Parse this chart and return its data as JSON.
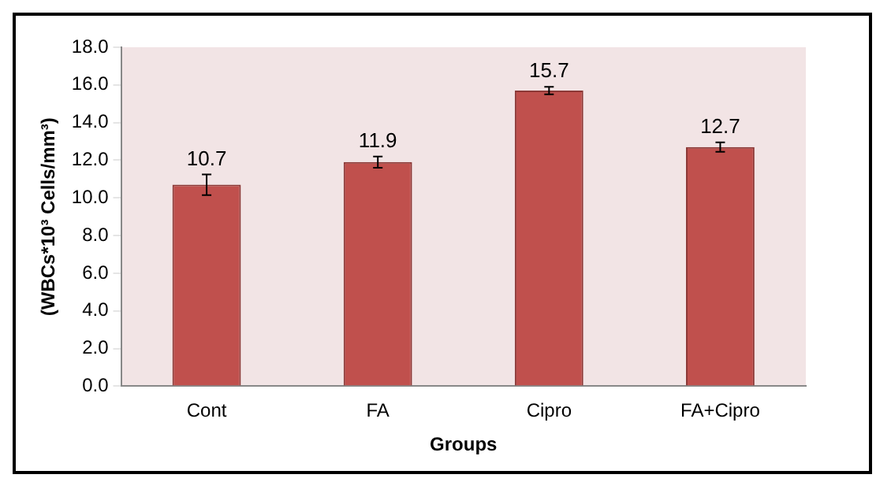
{
  "chart_data": {
    "type": "bar",
    "xlabel": "Groups",
    "ylabel": "(WBCs*10³ Cells/mm³)",
    "categories": [
      "Cont",
      "FA",
      "Cipro",
      "FA+Cipro"
    ],
    "values": [
      10.7,
      11.9,
      15.7,
      12.7
    ],
    "errors": [
      0.55,
      0.3,
      0.2,
      0.25
    ],
    "color": "#c0504d",
    "data_labels": true,
    "ylim": [
      0,
      18
    ],
    "yticks": [
      {
        "value": 0,
        "label": "0.0"
      },
      {
        "value": 2,
        "label": "2.0"
      },
      {
        "value": 4,
        "label": "4.0"
      },
      {
        "value": 6,
        "label": "6.0"
      },
      {
        "value": 8,
        "label": "8.0"
      },
      {
        "value": 10,
        "label": "10.0"
      },
      {
        "value": 12,
        "label": "12.0"
      },
      {
        "value": 14,
        "label": "14.0"
      },
      {
        "value": 16,
        "label": "16.0"
      },
      {
        "value": 18,
        "label": "18.0"
      }
    ],
    "grid": false,
    "legend": false
  }
}
